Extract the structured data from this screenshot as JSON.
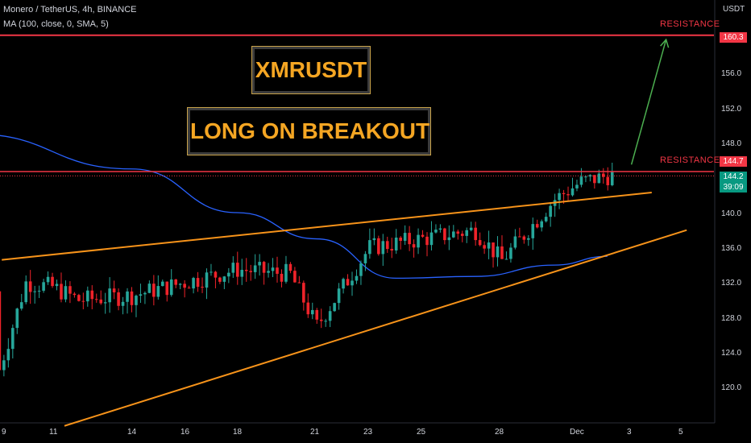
{
  "header": {
    "symbol_line": "Monero / TetherUS, 4h, BINANCE",
    "indicator_line": "MA (100, close, 0, SMA, 5)"
  },
  "annotations": {
    "title": "XMRUSDT",
    "subtitle": "LONG ON BREAKOUT",
    "resistance_upper": "RESISTANCE",
    "resistance_lower": "RESISTANCE"
  },
  "price_axis": {
    "currency": "USDT",
    "ticks": [
      "120.0",
      "124.0",
      "128.0",
      "132.0",
      "136.0",
      "140.0",
      "148.0",
      "152.0",
      "156.0"
    ]
  },
  "price_tags": {
    "upper_resistance": "160.3",
    "lower_resistance": "144.7",
    "last_price": "144.2",
    "countdown": "39:09"
  },
  "time_axis": {
    "ticks": [
      "9",
      "11",
      "14",
      "16",
      "18",
      "21",
      "23",
      "25",
      "28",
      "Dec",
      "3",
      "5"
    ]
  },
  "colors": {
    "up": "#26a69a",
    "down": "#ef232a",
    "ma": "#2962ff",
    "trendline": "#f7931a",
    "resistance": "#f23645",
    "arrow": "#4caf50",
    "banner_text": "#f5a623"
  },
  "chart_data": {
    "type": "candlestick",
    "symbol": "Monero / TetherUS",
    "interval": "4h",
    "exchange": "BINANCE",
    "indicator": "MA (100, close, 0, SMA, 5)",
    "ylim": [
      117,
      163
    ],
    "resistance_levels": [
      160.3,
      144.7
    ],
    "last_price": 144.2,
    "trendlines": {
      "upper_channel": [
        {
          "date": "Nov 10",
          "price": 134.6
        },
        {
          "date": "Dec 2",
          "price": 142.3
        }
      ],
      "lower_channel": [
        {
          "date": "Nov 11",
          "price": 115.6
        },
        {
          "date": "Dec 5",
          "price": 138.0
        }
      ]
    },
    "projection_arrow": [
      {
        "date": "Dec 3",
        "price": 145.5
      },
      {
        "date": "Dec 3",
        "price": 159.8
      }
    ],
    "candles_close_approx": [
      {
        "date": "Nov 9",
        "close": 122.0
      },
      {
        "date": "Nov 10",
        "close": 132.0
      },
      {
        "date": "Nov 11",
        "close": 131.5
      },
      {
        "date": "Nov 12",
        "close": 130.0
      },
      {
        "date": "Nov 14",
        "close": 130.5
      },
      {
        "date": "Nov 16",
        "close": 132.0
      },
      {
        "date": "Nov 18",
        "close": 133.5
      },
      {
        "date": "Nov 20",
        "close": 133.0
      },
      {
        "date": "Nov 21",
        "close": 127.0
      },
      {
        "date": "Nov 23",
        "close": 136.0
      },
      {
        "date": "Nov 25",
        "close": 137.0
      },
      {
        "date": "Nov 27",
        "close": 138.0
      },
      {
        "date": "Nov 28",
        "close": 134.5
      },
      {
        "date": "Nov 30",
        "close": 141.5
      },
      {
        "date": "Dec 1",
        "close": 143.5
      },
      {
        "date": "Dec 2",
        "close": 144.2
      }
    ],
    "ma_approx": [
      {
        "date": "Nov 8",
        "value": 149.0
      },
      {
        "date": "Nov 14",
        "value": 145.0
      },
      {
        "date": "Nov 18",
        "value": 140.0
      },
      {
        "date": "Nov 21",
        "value": 137.0
      },
      {
        "date": "Nov 24",
        "value": 132.5
      },
      {
        "date": "Nov 27",
        "value": 132.7
      },
      {
        "date": "Nov 30",
        "value": 134.0
      },
      {
        "date": "Dec 2",
        "value": 135.0
      }
    ]
  }
}
